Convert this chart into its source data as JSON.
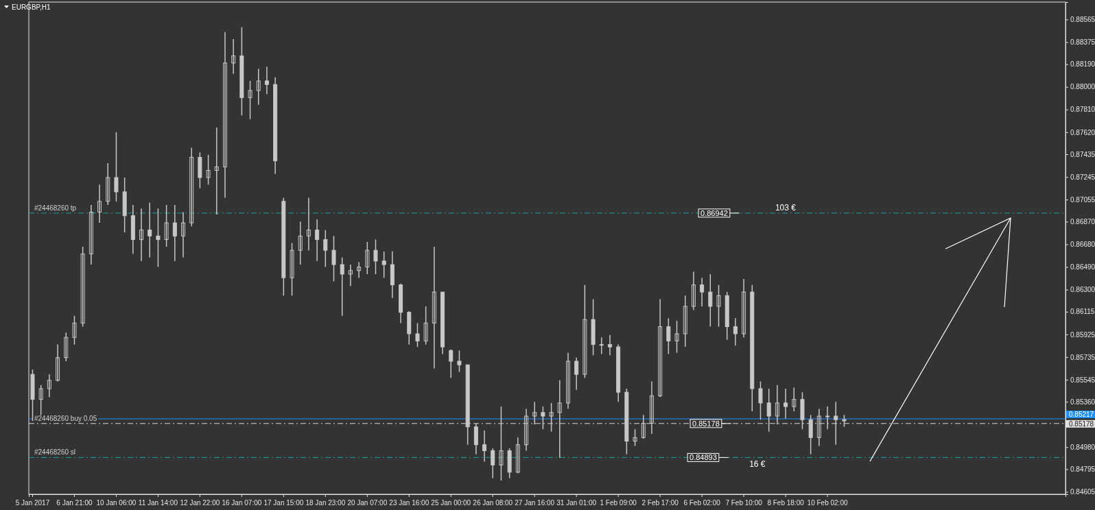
{
  "chart_data": {
    "type": "candlestick",
    "title": "EURGBP,H1",
    "color": "#c8c8c8",
    "categories": [
      "5 Jan 2017",
      null,
      null,
      null,
      null,
      "6 Jan 21:00",
      null,
      null,
      null,
      null,
      "10 Jan 06:00",
      null,
      null,
      null,
      null,
      "11 Jan 14:00",
      null,
      null,
      null,
      null,
      "12 Jan 22:00",
      null,
      null,
      null,
      null,
      "16 Jan 07:00",
      null,
      null,
      null,
      null,
      "17 Jan 15:00",
      null,
      null,
      null,
      null,
      "18 Jan 23:00",
      null,
      null,
      null,
      null,
      "20 Jan 07:00",
      null,
      null,
      null,
      null,
      "23 Jan 16:00",
      null,
      null,
      null,
      null,
      "25 Jan 00:00",
      null,
      null,
      null,
      null,
      "26 Jan 08:00",
      null,
      null,
      null,
      null,
      "27 Jan 16:00",
      null,
      null,
      null,
      null,
      "31 Jan 01:00",
      null,
      null,
      null,
      null,
      "1 Feb 09:00",
      null,
      null,
      null,
      null,
      "2 Feb 17:00",
      null,
      null,
      null,
      null,
      "6 Feb 02:00",
      null,
      null,
      null,
      null,
      "7 Feb 10:00",
      null,
      null,
      null,
      null,
      "8 Feb 18:00",
      null,
      null,
      null,
      null,
      "10 Feb 02:00",
      null,
      null,
      null,
      null,
      null,
      null,
      null,
      null,
      null,
      null,
      null,
      null,
      null,
      null,
      null,
      null,
      null,
      null,
      null,
      null,
      null,
      null,
      null,
      null,
      null,
      null,
      null,
      null
    ],
    "ohlc": [
      [
        0.8559,
        0.8563,
        0.852,
        0.8538
      ],
      [
        0.8538,
        0.855,
        0.8525,
        0.8547
      ],
      [
        0.8547,
        0.8559,
        0.854,
        0.8554
      ],
      [
        0.8554,
        0.8584,
        0.8553,
        0.8573
      ],
      [
        0.8573,
        0.8594,
        0.857,
        0.859
      ],
      [
        0.859,
        0.8608,
        0.8584,
        0.8602
      ],
      [
        0.8602,
        0.8666,
        0.8599,
        0.866
      ],
      [
        0.866,
        0.8701,
        0.8651,
        0.8695
      ],
      [
        0.8695,
        0.8718,
        0.8686,
        0.8704
      ],
      [
        0.8704,
        0.8736,
        0.8701,
        0.8724
      ],
      [
        0.8724,
        0.8762,
        0.8704,
        0.8712
      ],
      [
        0.8712,
        0.8724,
        0.8678,
        0.8692
      ],
      [
        0.8692,
        0.8701,
        0.866,
        0.8672
      ],
      [
        0.8672,
        0.8698,
        0.8654,
        0.868
      ],
      [
        0.868,
        0.8703,
        0.8657,
        0.8675
      ],
      [
        0.8675,
        0.8698,
        0.8649,
        0.8672
      ],
      [
        0.8672,
        0.8701,
        0.8666,
        0.8686
      ],
      [
        0.8686,
        0.8701,
        0.8654,
        0.8675
      ],
      [
        0.8675,
        0.8695,
        0.8657,
        0.8686
      ],
      [
        0.8686,
        0.8749,
        0.8683,
        0.8741
      ],
      [
        0.8741,
        0.8745,
        0.8715,
        0.8724
      ],
      [
        0.8724,
        0.8743,
        0.8718,
        0.873
      ],
      [
        0.873,
        0.8766,
        0.8693,
        0.8733
      ],
      [
        0.8733,
        0.8846,
        0.8707,
        0.882
      ],
      [
        0.882,
        0.884,
        0.8811,
        0.8826
      ],
      [
        0.8826,
        0.885,
        0.8776,
        0.8791
      ],
      [
        0.8791,
        0.8805,
        0.8773,
        0.8797
      ],
      [
        0.8797,
        0.8815,
        0.8785,
        0.8805
      ],
      [
        0.8805,
        0.8817,
        0.8794,
        0.8802
      ],
      [
        0.8802,
        0.8808,
        0.8727,
        0.8738
      ],
      [
        0.8704,
        0.8707,
        0.8625,
        0.864
      ],
      [
        0.864,
        0.8669,
        0.8625,
        0.8663
      ],
      [
        0.8663,
        0.8687,
        0.8651,
        0.8675
      ],
      [
        0.8675,
        0.8707,
        0.8663,
        0.868
      ],
      [
        0.868,
        0.8689,
        0.8654,
        0.8672
      ],
      [
        0.8672,
        0.868,
        0.8649,
        0.8663
      ],
      [
        0.8663,
        0.8675,
        0.8637,
        0.8651
      ],
      [
        0.8651,
        0.8657,
        0.8608,
        0.8643
      ],
      [
        0.8643,
        0.8651,
        0.8633,
        0.8646
      ],
      [
        0.8646,
        0.8653,
        0.864,
        0.8649
      ],
      [
        0.8649,
        0.867,
        0.8643,
        0.8663
      ],
      [
        0.8663,
        0.8672,
        0.8643,
        0.8654
      ],
      [
        0.8654,
        0.8662,
        0.864,
        0.8651
      ],
      [
        0.8651,
        0.8662,
        0.8623,
        0.8634
      ],
      [
        0.8634,
        0.8635,
        0.8602,
        0.8611
      ],
      [
        0.8611,
        0.8612,
        0.8584,
        0.8593
      ],
      [
        0.8593,
        0.8602,
        0.8582,
        0.8587
      ],
      [
        0.8587,
        0.8616,
        0.8584,
        0.8602
      ],
      [
        0.8602,
        0.8666,
        0.8564,
        0.8628
      ],
      [
        0.8628,
        0.8628,
        0.8576,
        0.8582
      ],
      [
        0.8579,
        0.858,
        0.8556,
        0.857
      ],
      [
        0.857,
        0.8579,
        0.8561,
        0.8567
      ],
      [
        0.8567,
        0.8567,
        0.85,
        0.8515
      ],
      [
        0.8515,
        0.8518,
        0.8492,
        0.85
      ],
      [
        0.85,
        0.8512,
        0.8486,
        0.8495
      ],
      [
        0.8495,
        0.8497,
        0.8472,
        0.8483
      ],
      [
        0.8483,
        0.8532,
        0.847,
        0.8495
      ],
      [
        0.8495,
        0.8497,
        0.8472,
        0.8477
      ],
      [
        0.8477,
        0.8506,
        0.8476,
        0.85
      ],
      [
        0.85,
        0.853,
        0.8495,
        0.8524
      ],
      [
        0.8524,
        0.8536,
        0.8517,
        0.8527
      ],
      [
        0.8527,
        0.8532,
        0.8513,
        0.8524
      ],
      [
        0.8524,
        0.8535,
        0.8511,
        0.8527
      ],
      [
        0.8527,
        0.8554,
        0.8489,
        0.8535
      ],
      [
        0.8535,
        0.8577,
        0.853,
        0.857
      ],
      [
        0.857,
        0.8573,
        0.8546,
        0.8559
      ],
      [
        0.8559,
        0.8634,
        0.8556,
        0.8605
      ],
      [
        0.8605,
        0.8622,
        0.8575,
        0.8584
      ],
      [
        0.8584,
        0.859,
        0.8576,
        0.8584
      ],
      [
        0.8584,
        0.8592,
        0.8575,
        0.8582
      ],
      [
        0.8582,
        0.8584,
        0.8536,
        0.8544
      ],
      [
        0.8544,
        0.8547,
        0.8492,
        0.8503
      ],
      [
        0.8503,
        0.8513,
        0.8499,
        0.8506
      ],
      [
        0.8506,
        0.8525,
        0.8505,
        0.8518
      ],
      [
        0.8518,
        0.8553,
        0.8509,
        0.8541
      ],
      [
        0.8541,
        0.8622,
        0.854,
        0.8599
      ],
      [
        0.8599,
        0.8606,
        0.8576,
        0.8587
      ],
      [
        0.8587,
        0.8604,
        0.8577,
        0.8593
      ],
      [
        0.8593,
        0.8625,
        0.8582,
        0.8616
      ],
      [
        0.8616,
        0.8645,
        0.8613,
        0.8634
      ],
      [
        0.8634,
        0.864,
        0.8616,
        0.8628
      ],
      [
        0.8628,
        0.8643,
        0.8599,
        0.8616
      ],
      [
        0.8616,
        0.8634,
        0.8599,
        0.8625
      ],
      [
        0.8625,
        0.8628,
        0.8588,
        0.8599
      ],
      [
        0.8599,
        0.8606,
        0.8583,
        0.8593
      ],
      [
        0.8593,
        0.8639,
        0.859,
        0.8628
      ],
      [
        0.8628,
        0.8634,
        0.8528,
        0.8547
      ],
      [
        0.8547,
        0.8553,
        0.8521,
        0.8535
      ],
      [
        0.8535,
        0.8547,
        0.8511,
        0.8524
      ],
      [
        0.8524,
        0.855,
        0.8517,
        0.8535
      ],
      [
        0.8535,
        0.8547,
        0.8522,
        0.8532
      ],
      [
        0.8532,
        0.8548,
        0.8528,
        0.8538
      ],
      [
        0.8538,
        0.8544,
        0.8513,
        0.8521
      ],
      [
        0.8521,
        0.8525,
        0.8492,
        0.8506
      ],
      [
        0.8506,
        0.853,
        0.8499,
        0.8524
      ],
      [
        0.8524,
        0.8532,
        0.8513,
        0.8524
      ],
      [
        0.8524,
        0.8536,
        0.85,
        0.8521
      ],
      [
        0.8521,
        0.8525,
        0.8515,
        0.852
      ],
      null,
      null,
      null,
      null,
      null,
      null,
      null,
      null,
      null,
      null,
      null,
      null,
      null,
      null,
      null,
      null,
      null,
      null,
      null,
      null,
      null,
      null,
      null,
      null,
      null,
      null
    ],
    "ylim": [
      0.84585,
      0.88711
    ],
    "yticks": [
      0.84605,
      0.84795,
      {
        "value": 0.8498,
        "label": "0.84980"
      },
      {
        "value": 0.8536,
        "label": "0.85360"
      },
      0.85545,
      0.85735,
      0.85925,
      0.86115,
      {
        "value": 0.863,
        "label": "0.86300"
      },
      {
        "value": 0.8649,
        "label": "0.86490"
      },
      {
        "value": 0.8668,
        "label": "0.86680"
      },
      {
        "value": 0.8687,
        "label": "0.86870"
      },
      0.87055,
      0.87245,
      0.87435,
      {
        "value": 0.8762,
        "label": "0.87620"
      },
      {
        "value": 0.8781,
        "label": "0.87810"
      },
      {
        "value": 0.88,
        "label": "0.88000"
      },
      {
        "value": 0.8819,
        "label": "0.88190"
      },
      0.88375,
      0.88565
    ],
    "ref_lines": [
      {
        "axis": "y",
        "value": 0.86942,
        "label": "#24468260 tp",
        "color": "#1f9c9c",
        "line_style": "dashdot"
      },
      {
        "axis": "y",
        "value": 0.85178,
        "label": "#24468260 buy 0.05",
        "color": "#d8d8d8",
        "line_style": "dashdot"
      },
      {
        "axis": "y",
        "value": 0.84893,
        "label": "#24468260 sl",
        "color": "#1f9c9c",
        "line_style": "dashdot"
      },
      {
        "axis": "y",
        "value": 0.85217,
        "label": "0.85217",
        "color": "#1e90ff",
        "line_style": "solid"
      }
    ],
    "annotations": [
      {
        "text": "0.86942",
        "y": 0.86942
      },
      {
        "text": "0.85178",
        "y": 0.85178
      },
      {
        "text": "0.84893",
        "y": 0.84893
      },
      "103 €",
      "16 €",
      "0.85178"
    ]
  }
}
